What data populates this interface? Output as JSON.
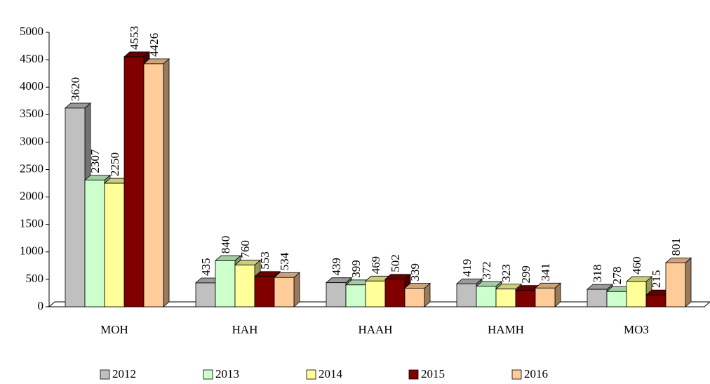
{
  "chart_data": {
    "type": "bar3d",
    "categories": [
      "МОН",
      "НАН",
      "НААН",
      "НАМН",
      "МОЗ"
    ],
    "series": [
      {
        "name": "2012",
        "color": "#c0c0c0",
        "values": [
          3620,
          435,
          439,
          419,
          318
        ]
      },
      {
        "name": "2013",
        "color": "#ccffcc",
        "values": [
          2307,
          840,
          399,
          372,
          278
        ]
      },
      {
        "name": "2014",
        "color": "#ffff99",
        "values": [
          2250,
          760,
          469,
          323,
          460
        ]
      },
      {
        "name": "2015",
        "color": "#800000",
        "values": [
          4553,
          553,
          502,
          299,
          215
        ]
      },
      {
        "name": "2016",
        "color": "#ffcc99",
        "values": [
          4426,
          534,
          339,
          341,
          801
        ]
      }
    ],
    "ylim": [
      0,
      5000
    ],
    "yticks": [
      0,
      500,
      1000,
      1500,
      2000,
      2500,
      3000,
      3500,
      4000,
      4500,
      5000
    ],
    "legend": "bottom"
  }
}
